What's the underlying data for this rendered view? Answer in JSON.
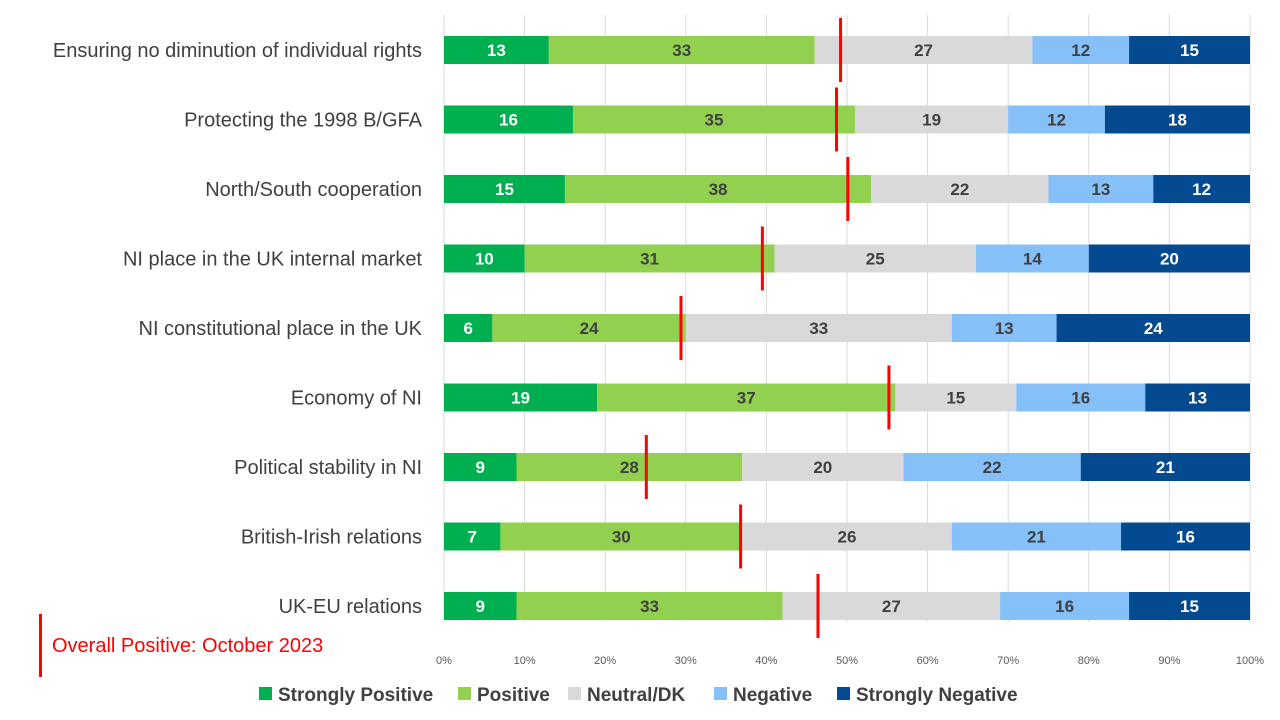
{
  "chart_data": {
    "type": "bar",
    "orientation": "horizontal",
    "stacked": "100%",
    "categories": [
      "Ensuring no diminution of individual rights",
      "Protecting the 1998 B/GFA",
      "North/South cooperation",
      "NI place in the UK internal market",
      "NI constitutional place in the UK",
      "Economy of NI",
      "Political stability in NI",
      "British-Irish relations",
      "UK-EU relations"
    ],
    "series": [
      {
        "name": "Strongly Positive",
        "color": "#00B050",
        "label_color": "#ffffff",
        "values": [
          13,
          16,
          15,
          10,
          6,
          19,
          9,
          7,
          9
        ]
      },
      {
        "name": "Positive",
        "color": "#92D050",
        "label_color": "#404040",
        "values": [
          33,
          35,
          38,
          31,
          24,
          37,
          28,
          30,
          33
        ]
      },
      {
        "name": "Neutral/DK",
        "color": "#D9D9D9",
        "label_color": "#404040",
        "values": [
          27,
          19,
          22,
          25,
          33,
          15,
          20,
          26,
          27
        ]
      },
      {
        "name": "Negative",
        "color": "#85C0F9",
        "label_color": "#404040",
        "values": [
          12,
          12,
          13,
          14,
          13,
          16,
          22,
          21,
          16
        ]
      },
      {
        "name": "Strongly Negative",
        "color": "#044A91",
        "label_color": "#ffffff",
        "values": [
          15,
          18,
          12,
          20,
          24,
          13,
          21,
          16,
          15
        ]
      }
    ],
    "markers": {
      "name": "Overall Positive: October 2023",
      "color": "#FF0000",
      "values": [
        49.2,
        48.7,
        50.1,
        39.5,
        29.4,
        55.2,
        25.1,
        36.8,
        46.4
      ]
    },
    "xlim": [
      0,
      100
    ],
    "x_ticks": [
      "0%",
      "10%",
      "20%",
      "30%",
      "40%",
      "50%",
      "60%",
      "70%",
      "80%",
      "90%",
      "100%"
    ],
    "grid": "vertical",
    "legend_position": "bottom"
  }
}
